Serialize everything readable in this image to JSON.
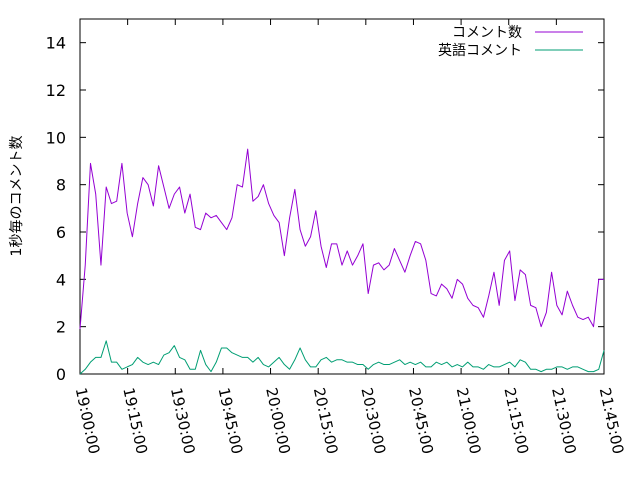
{
  "chart_data": {
    "type": "line",
    "title": "",
    "xlabel": "",
    "ylabel": "1秒毎のコメント数",
    "ylim": [
      0,
      15
    ],
    "yticks": [
      0,
      2,
      4,
      6,
      8,
      10,
      12,
      14
    ],
    "x_range": [
      "19:00:00",
      "21:45:00"
    ],
    "x_step_minutes": 1.5,
    "xticks": [
      "19:00:00",
      "19:15:00",
      "19:30:00",
      "19:45:00",
      "20:00:00",
      "20:15:00",
      "20:30:00",
      "20:45:00",
      "21:00:00",
      "21:15:00",
      "21:30:00",
      "21:45:00"
    ],
    "grid": false,
    "legend_position": "top-right",
    "series": [
      {
        "name": "コメント数",
        "color": "#9400d3",
        "values": [
          1.9,
          4.6,
          8.9,
          7.6,
          4.6,
          7.9,
          7.2,
          7.3,
          8.9,
          6.8,
          5.8,
          7.2,
          8.3,
          8.0,
          7.1,
          8.8,
          7.9,
          7.0,
          7.6,
          7.9,
          6.8,
          7.6,
          6.2,
          6.1,
          6.8,
          6.6,
          6.7,
          6.4,
          6.1,
          6.6,
          8.0,
          7.9,
          9.5,
          7.3,
          7.5,
          8.0,
          7.2,
          6.7,
          6.4,
          5.0,
          6.6,
          7.8,
          6.1,
          5.4,
          5.8,
          6.9,
          5.4,
          4.5,
          5.5,
          5.5,
          4.6,
          5.2,
          4.6,
          5.0,
          5.5,
          3.4,
          4.6,
          4.7,
          4.4,
          4.6,
          5.3,
          4.8,
          4.3,
          5.0,
          5.6,
          5.5,
          4.8,
          3.4,
          3.3,
          3.8,
          3.6,
          3.2,
          4.0,
          3.8,
          3.2,
          2.9,
          2.8,
          2.4,
          3.3,
          4.3,
          2.9,
          4.8,
          5.2,
          3.1,
          4.4,
          4.2,
          2.9,
          2.8,
          2.0,
          2.6,
          4.3,
          2.9,
          2.5,
          3.5,
          2.9,
          2.4,
          2.3,
          2.4,
          2.0,
          4.0,
          4.0
        ]
      },
      {
        "name": "英語コメント",
        "color": "#009e73",
        "values": [
          0.0,
          0.2,
          0.5,
          0.7,
          0.7,
          1.4,
          0.5,
          0.5,
          0.2,
          0.3,
          0.4,
          0.7,
          0.5,
          0.4,
          0.5,
          0.4,
          0.8,
          0.9,
          1.2,
          0.7,
          0.6,
          0.2,
          0.2,
          1.0,
          0.4,
          0.1,
          0.5,
          1.1,
          1.1,
          0.9,
          0.8,
          0.7,
          0.7,
          0.5,
          0.7,
          0.4,
          0.3,
          0.5,
          0.7,
          0.4,
          0.2,
          0.6,
          1.1,
          0.6,
          0.3,
          0.3,
          0.6,
          0.7,
          0.5,
          0.6,
          0.6,
          0.5,
          0.5,
          0.4,
          0.4,
          0.2,
          0.4,
          0.5,
          0.4,
          0.4,
          0.5,
          0.6,
          0.4,
          0.5,
          0.4,
          0.5,
          0.3,
          0.3,
          0.5,
          0.4,
          0.5,
          0.3,
          0.4,
          0.3,
          0.5,
          0.3,
          0.3,
          0.2,
          0.4,
          0.3,
          0.3,
          0.4,
          0.5,
          0.3,
          0.6,
          0.5,
          0.2,
          0.2,
          0.1,
          0.2,
          0.2,
          0.3,
          0.3,
          0.2,
          0.3,
          0.3,
          0.2,
          0.1,
          0.1,
          0.2,
          1.0
        ]
      }
    ]
  }
}
